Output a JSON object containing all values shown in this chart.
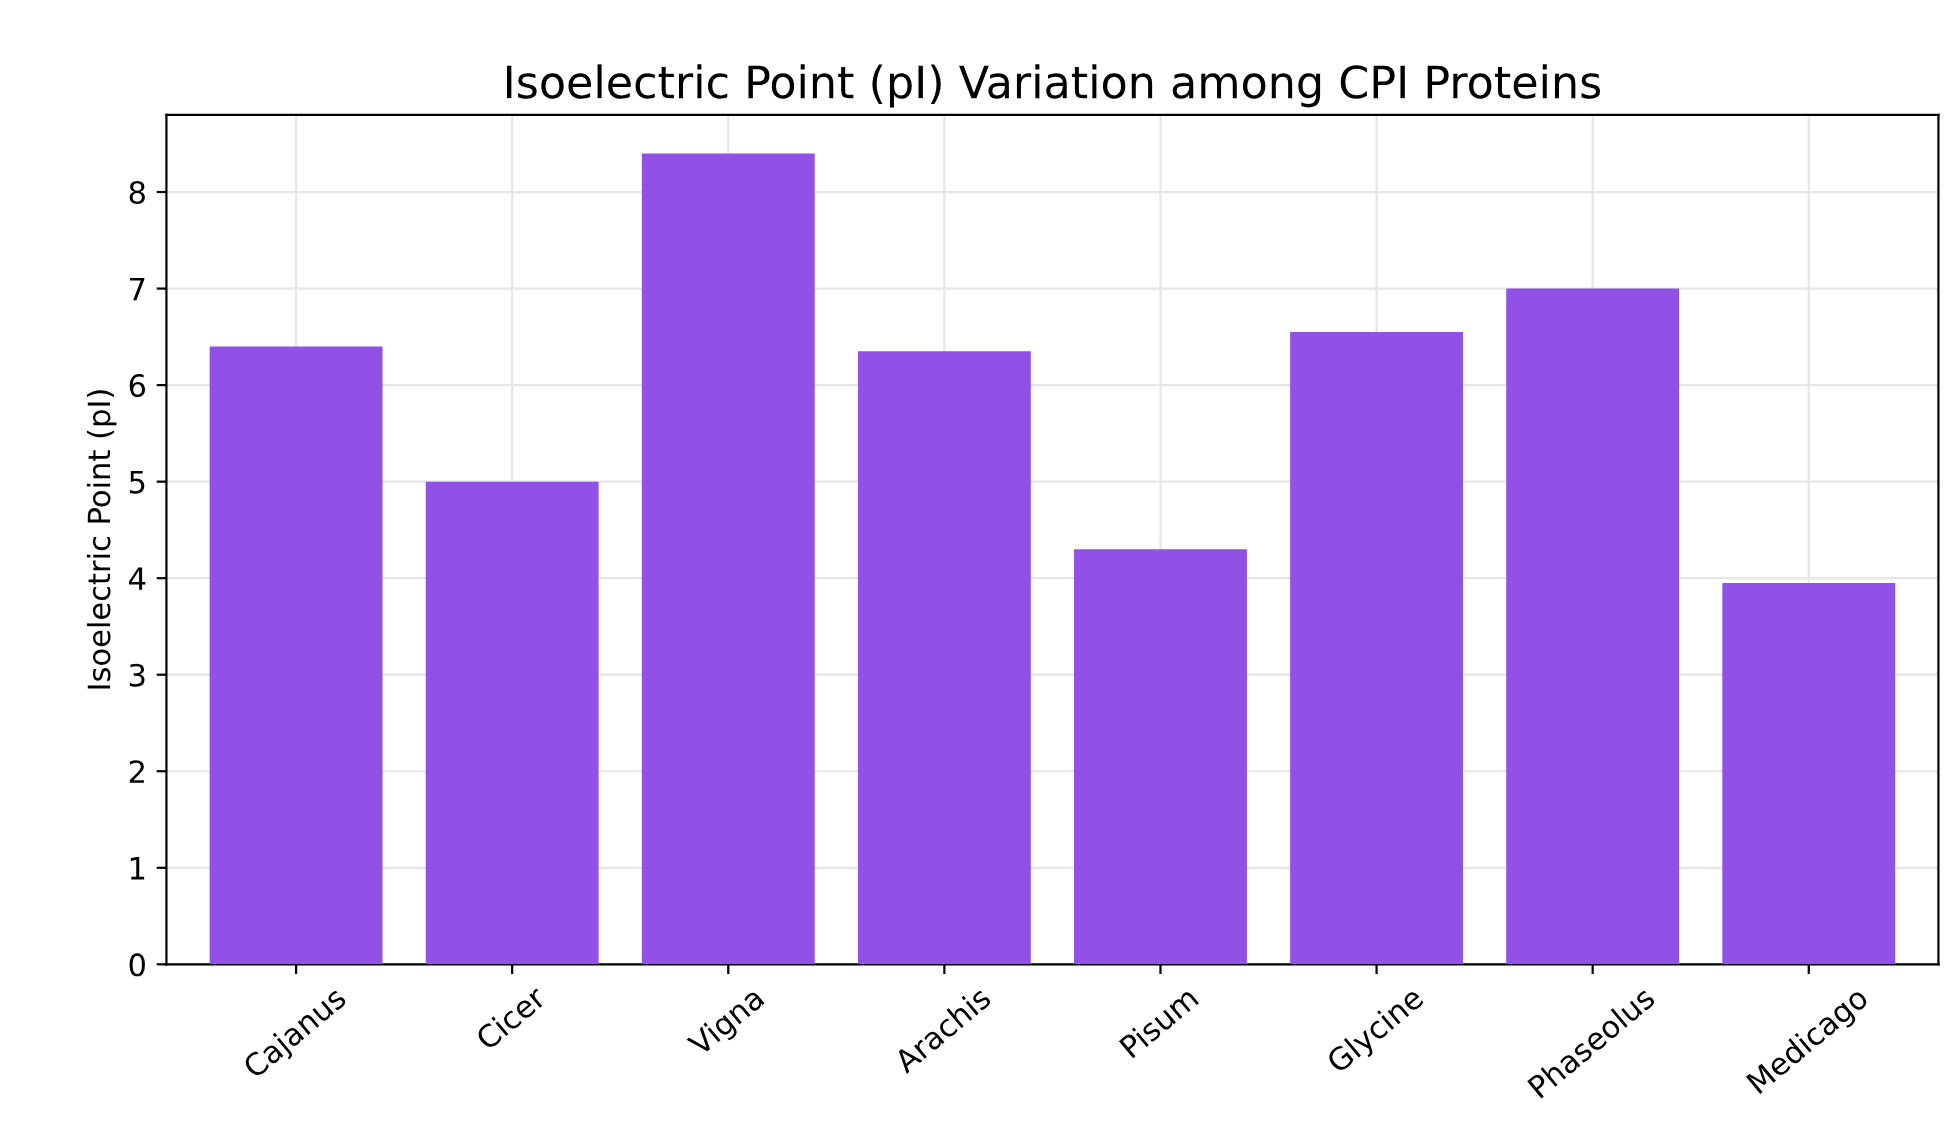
{
  "chart_data": {
    "type": "bar",
    "title": "Isoelectric Point (pI) Variation among CPI Proteins",
    "ylabel": "Isoelectric Point (pI)",
    "categories": [
      "Cajanus",
      "Cicer",
      "Vigna",
      "Arachis",
      "Pisum",
      "Glycine",
      "Phaseolus",
      "Medicago"
    ],
    "values": [
      6.4,
      5.0,
      8.4,
      6.35,
      4.3,
      6.55,
      7.0,
      3.95
    ],
    "color": "#9150e6",
    "ylim": [
      0,
      8.8
    ],
    "yticks": [
      0,
      1,
      2,
      3,
      4,
      5,
      6,
      7,
      8
    ],
    "grid": true
  }
}
